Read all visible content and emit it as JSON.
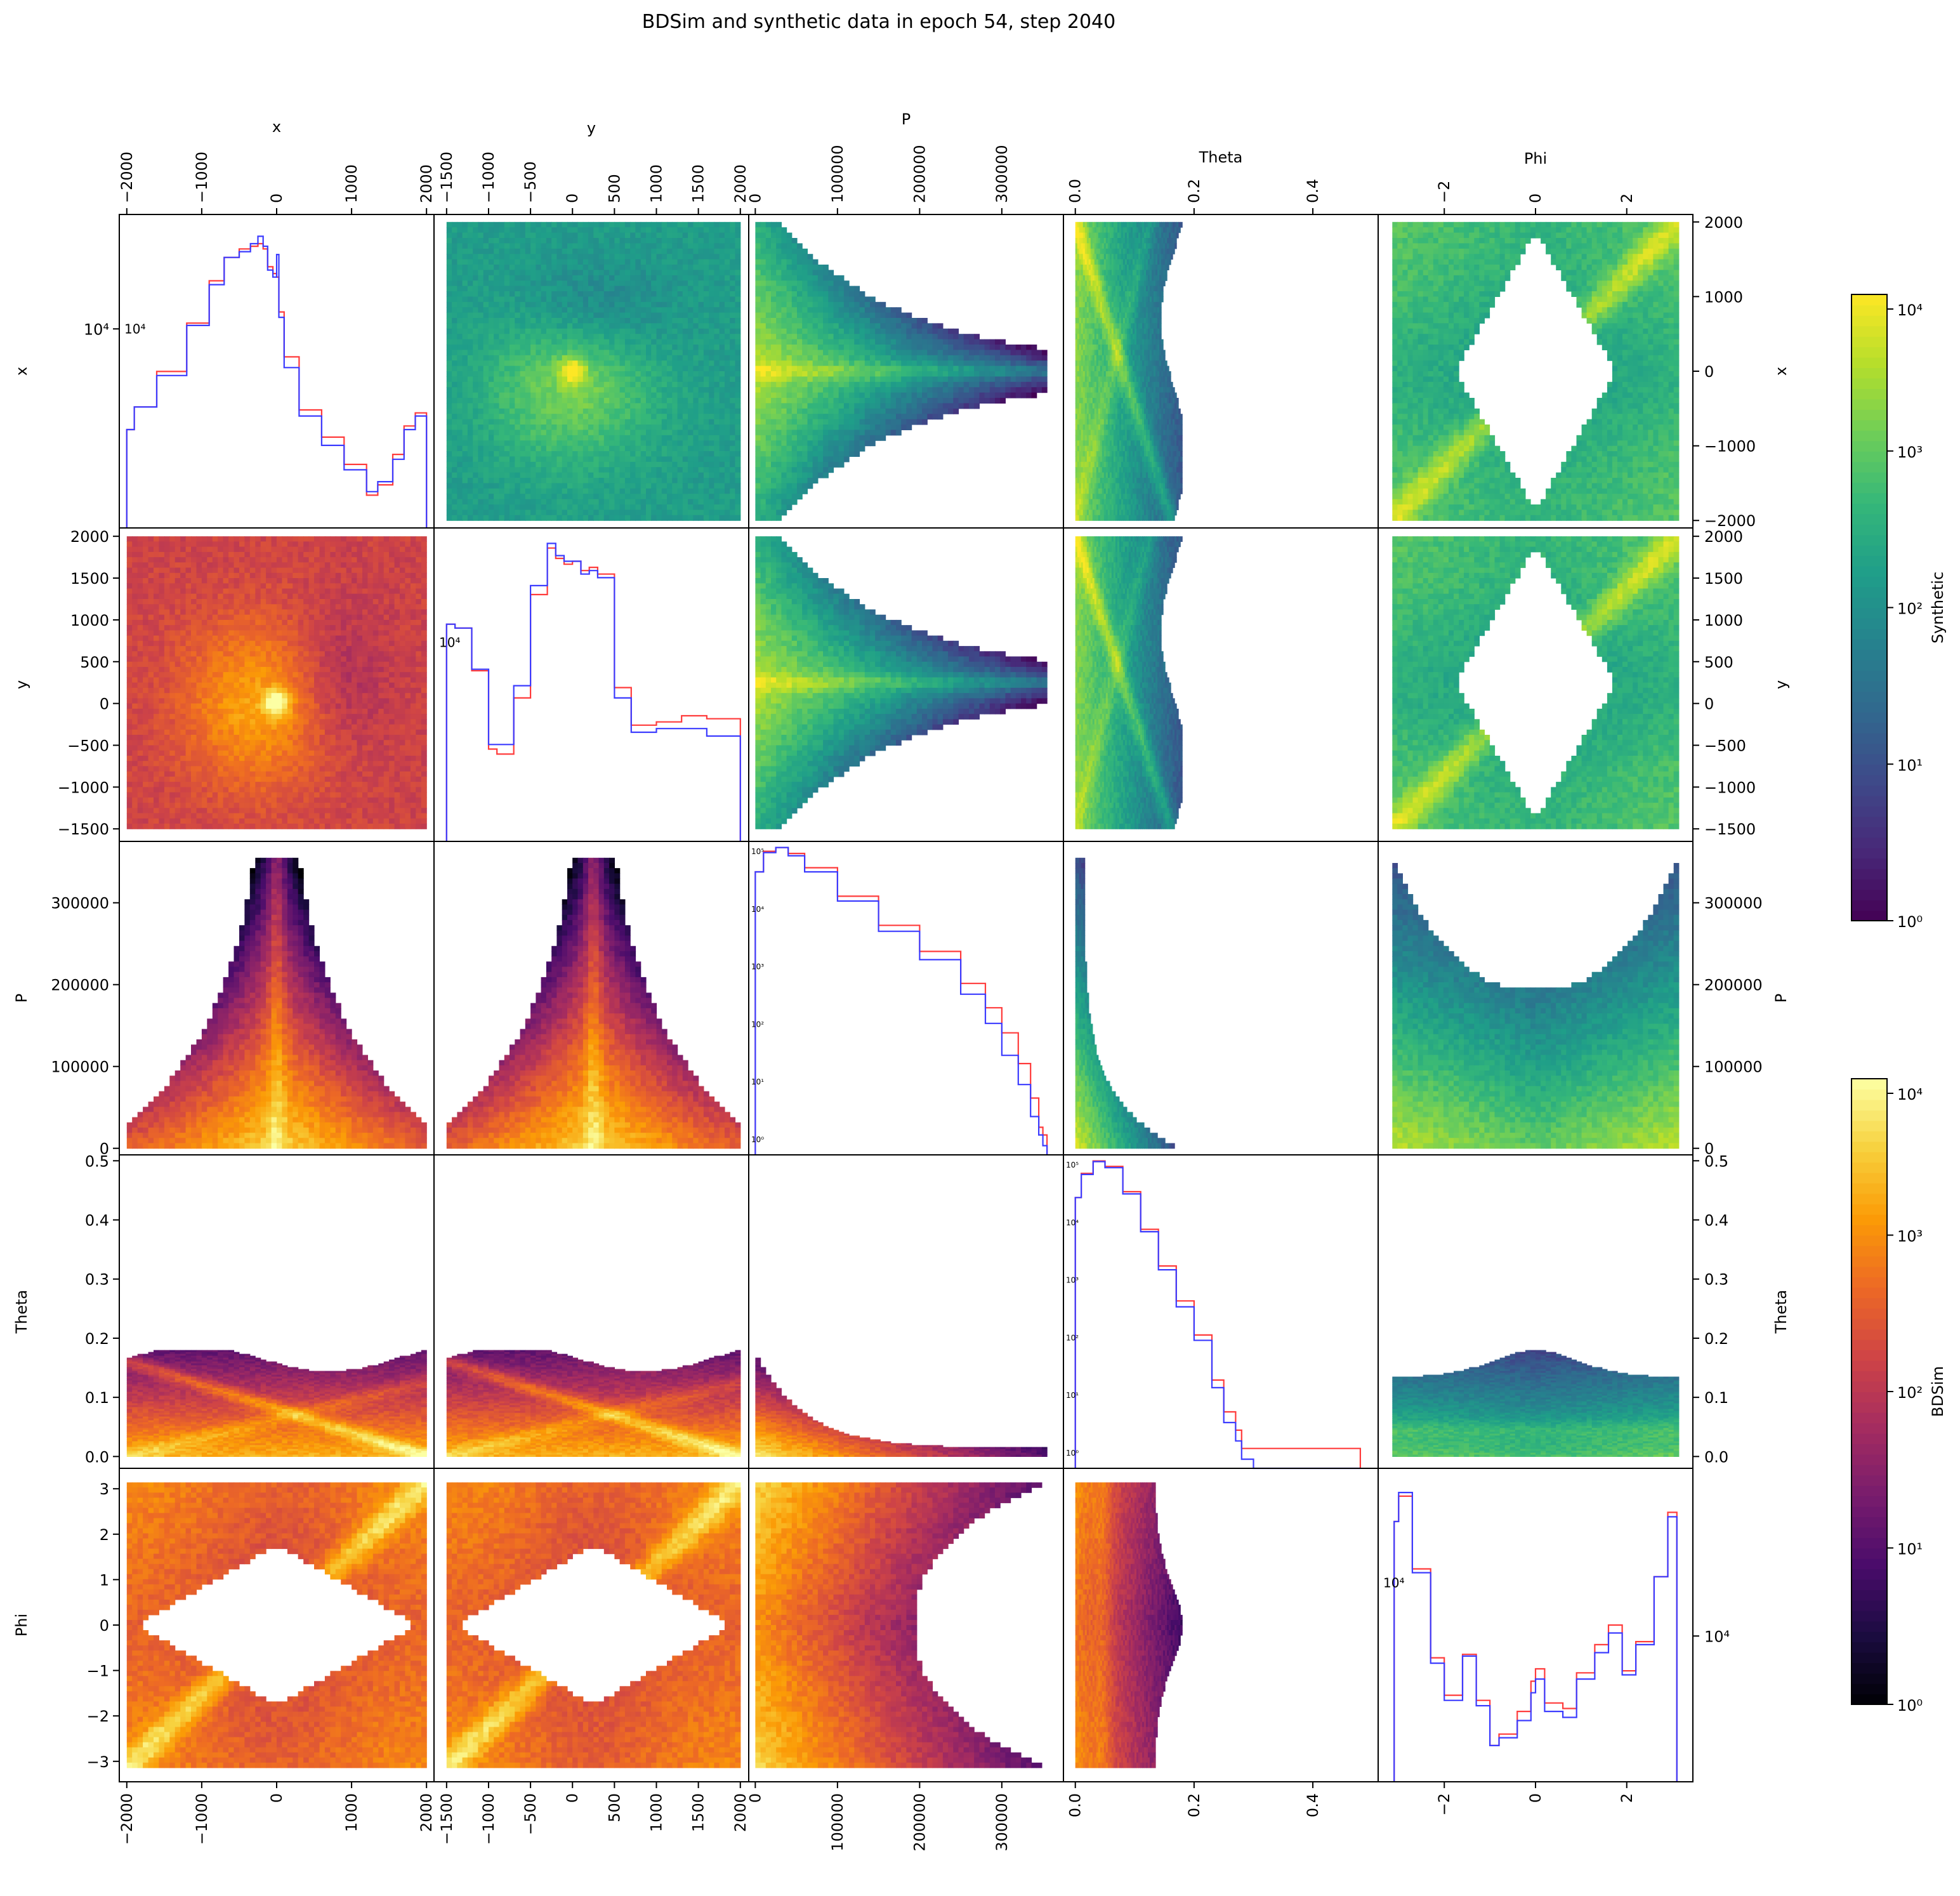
{
  "figure": {
    "title": "BDSim and synthetic data in epoch 54, step 2040"
  },
  "chart_data": {
    "type": "heatmap",
    "layout": "corner pair-plot: upper triangle = Synthetic 2D histograms (viridis), lower triangle = BDSim 2D histograms (inferno), diagonal = 1D histograms (log scale) comparing BDSim and Synthetic",
    "variables": [
      "x",
      "y",
      "P",
      "Theta",
      "Phi"
    ],
    "axes": {
      "x": {
        "label": "x",
        "range": [
          -2100,
          2100
        ],
        "ticks": [
          -2000,
          -1000,
          0,
          1000,
          2000
        ],
        "tick_labels": [
          "−2000",
          "−1000",
          "0",
          "1000",
          "2000"
        ]
      },
      "y": {
        "label": "y",
        "range": [
          -1650,
          2100
        ],
        "ticks": [
          -1500,
          -1000,
          -500,
          0,
          500,
          1000,
          1500,
          2000
        ],
        "tick_labels": [
          "−1500",
          "−1000",
          "−500",
          "0",
          "500",
          "1000",
          "1500",
          "2000"
        ]
      },
      "P": {
        "label": "P",
        "range": [
          -8000,
          375000
        ],
        "ticks": [
          0,
          100000,
          200000,
          300000
        ],
        "tick_labels": [
          "0",
          "100000",
          "200000",
          "300000"
        ]
      },
      "Theta": {
        "label": "Theta",
        "range": [
          -0.02,
          0.51
        ],
        "ticks": [
          0.0,
          0.1,
          0.2,
          0.3,
          0.4,
          0.5
        ],
        "tick_labels": [
          "0.0",
          "0.1",
          "0.2",
          "0.3",
          "0.4",
          "0.5"
        ],
        "edge_ticks": [
          0.0,
          0.2,
          0.4
        ],
        "edge_tick_labels": [
          "0.0",
          "0.2",
          "0.4"
        ]
      },
      "Phi": {
        "label": "Phi",
        "range": [
          -3.45,
          3.45
        ],
        "ticks": [
          -3,
          -2,
          -1,
          0,
          1,
          2,
          3
        ],
        "tick_labels": [
          "−3",
          "−2",
          "−1",
          "0",
          "1",
          "2",
          "3"
        ],
        "edge_ticks": [
          -2,
          0,
          2
        ],
        "edge_tick_labels": [
          "−2",
          "0",
          "2"
        ]
      }
    },
    "colorbars": [
      {
        "label": "Synthetic",
        "colormap": "viridis",
        "scale": "log",
        "range": [
          1,
          10000
        ],
        "tick_labels": [
          "10⁰",
          "10¹",
          "10²",
          "10³",
          "10⁴"
        ]
      },
      {
        "label": "BDSim",
        "colormap": "inferno",
        "scale": "log",
        "range": [
          1,
          10000
        ],
        "tick_labels": [
          "10⁰",
          "10¹",
          "10²",
          "10³",
          "10⁴"
        ]
      }
    ],
    "series_colors": {
      "BDSim": "#ff3b3b",
      "Synthetic": "#3b3bff"
    },
    "diagonal": [
      {
        "variable": "x",
        "scale": "log",
        "tick_label": "10⁴",
        "x": [
          -2000,
          -1900,
          -1600,
          -1200,
          -900,
          -700,
          -500,
          -350,
          -250,
          -180,
          -120,
          -50,
          0,
          30,
          100,
          300,
          600,
          900,
          1200,
          1350,
          1550,
          1700,
          1850,
          2000
        ],
        "bdsim": [
          2600,
          3300,
          4800,
          8000,
          12500,
          16000,
          17500,
          18000,
          18500,
          17500,
          14500,
          13500,
          13000,
          9000,
          5600,
          3200,
          2400,
          1800,
          1300,
          1450,
          2000,
          2700,
          3100,
          2900
        ],
        "synthetic": [
          2600,
          3300,
          4600,
          7800,
          12000,
          16000,
          17000,
          18500,
          20000,
          18000,
          14000,
          13000,
          16500,
          8500,
          5000,
          3000,
          2200,
          1700,
          1350,
          1500,
          1900,
          2600,
          3000,
          2900
        ]
      },
      {
        "variable": "y",
        "scale": "log",
        "tick_label": "10⁴",
        "x": [
          -1500,
          -1400,
          -1200,
          -1000,
          -900,
          -700,
          -500,
          -300,
          -200,
          -100,
          0,
          100,
          200,
          300,
          500,
          700,
          1000,
          1300,
          1600,
          2000
        ],
        "bdsim": [
          9000,
          8500,
          4500,
          1400,
          1300,
          3000,
          14000,
          28000,
          24000,
          22000,
          23000,
          20000,
          21000,
          19000,
          3500,
          2000,
          2100,
          2300,
          2200,
          700
        ],
        "synthetic": [
          9000,
          8500,
          4600,
          1500,
          1500,
          3600,
          16000,
          30000,
          25000,
          23000,
          23000,
          19000,
          20000,
          18000,
          3000,
          1800,
          1900,
          1900,
          1700,
          500
        ]
      },
      {
        "variable": "P",
        "scale": "log",
        "tick_labels": [
          "10⁰",
          "10¹",
          "10²",
          "10³",
          "10⁴",
          "10⁵"
        ],
        "x": [
          0,
          10000,
          25000,
          40000,
          60000,
          100000,
          150000,
          200000,
          250000,
          280000,
          300000,
          320000,
          335000,
          345000,
          350000,
          355000
        ],
        "bdsim": [
          30000,
          65000,
          75000,
          60000,
          35000,
          12000,
          4000,
          1500,
          450,
          180,
          70,
          22,
          6,
          2,
          1.5,
          1
        ],
        "synthetic": [
          30000,
          62000,
          75000,
          55000,
          30000,
          10000,
          3200,
          1100,
          300,
          100,
          30,
          10,
          3,
          1.5,
          1,
          1
        ]
      },
      {
        "variable": "Theta",
        "scale": "log",
        "tick_labels": [
          "10⁰",
          "10¹",
          "10²",
          "10³",
          "10⁴",
          "10⁵"
        ],
        "x": [
          0.0,
          0.01,
          0.03,
          0.05,
          0.08,
          0.11,
          0.14,
          0.17,
          0.2,
          0.23,
          0.25,
          0.27,
          0.28,
          0.3,
          0.45,
          0.48
        ],
        "bdsim": [
          20000,
          50000,
          80000,
          65000,
          25000,
          6000,
          1500,
          400,
          110,
          20,
          6,
          3,
          1.5,
          1.5,
          1.5,
          1.5
        ],
        "synthetic": [
          20000,
          48000,
          78000,
          62000,
          23000,
          5500,
          1300,
          320,
          90,
          15,
          4,
          2,
          1,
          0,
          0,
          0
        ]
      },
      {
        "variable": "Phi",
        "scale": "log",
        "tick_label": "10⁴",
        "x": [
          -3.1,
          -3.0,
          -2.7,
          -2.3,
          -2.0,
          -1.6,
          -1.3,
          -1.0,
          -0.8,
          -0.4,
          -0.1,
          0.0,
          0.2,
          0.6,
          0.9,
          1.3,
          1.6,
          1.9,
          2.2,
          2.6,
          2.9,
          3.1
        ],
        "bdsim": [
          22000,
          28000,
          14000,
          6000,
          4200,
          6200,
          4000,
          2600,
          2900,
          3600,
          4800,
          5400,
          3900,
          3700,
          5200,
          6800,
          8200,
          5300,
          7000,
          13000,
          24000,
          22000
        ],
        "synthetic": [
          22000,
          29000,
          13500,
          5700,
          4000,
          6100,
          3800,
          2600,
          2800,
          3300,
          4300,
          4900,
          3600,
          3400,
          4900,
          6300,
          7600,
          5100,
          6800,
          13000,
          23000,
          22000
        ]
      }
    ]
  }
}
